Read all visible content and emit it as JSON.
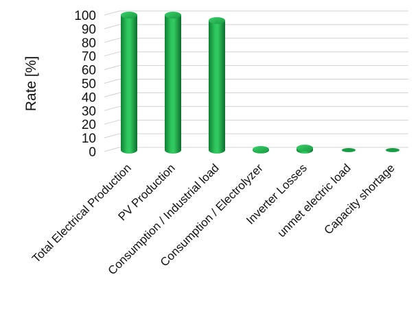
{
  "chart_data": {
    "type": "bar",
    "style": "3d-cylinder",
    "title": "",
    "xlabel": "",
    "ylabel": "Rate [%]",
    "ylim": [
      0,
      100
    ],
    "yticks": [
      0,
      10,
      20,
      30,
      40,
      50,
      60,
      70,
      80,
      90,
      100
    ],
    "grid": true,
    "legend": "none",
    "categories": [
      "Total Electrical Production",
      "PV Production",
      "Consumption / Industrial load",
      "Consumption / Electrolyzer",
      "Inverter Losses",
      "unmet electric load",
      "Capacity shortage"
    ],
    "values": [
      100,
      100,
      96,
      1.5,
      2.5,
      0,
      0
    ],
    "bar_color": "#1fa84a"
  }
}
